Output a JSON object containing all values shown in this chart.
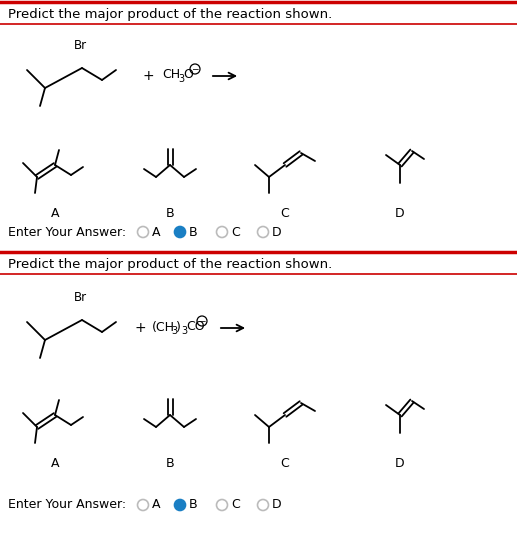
{
  "title1": "Predict the major product of the reaction shown.",
  "title2": "Predict the major product of the reaction shown.",
  "answer1_selected": "B",
  "answer2_selected": "B",
  "bg_color": "#ffffff",
  "text_color": "#000000",
  "red_line_color": "#cc0000",
  "selected_circle_color": "#1a7fc4",
  "unselected_circle_color": "#bbbbbb",
  "font_size_title": 9.5,
  "font_size_label": 9,
  "font_size_answer": 9,
  "lw": 1.3
}
